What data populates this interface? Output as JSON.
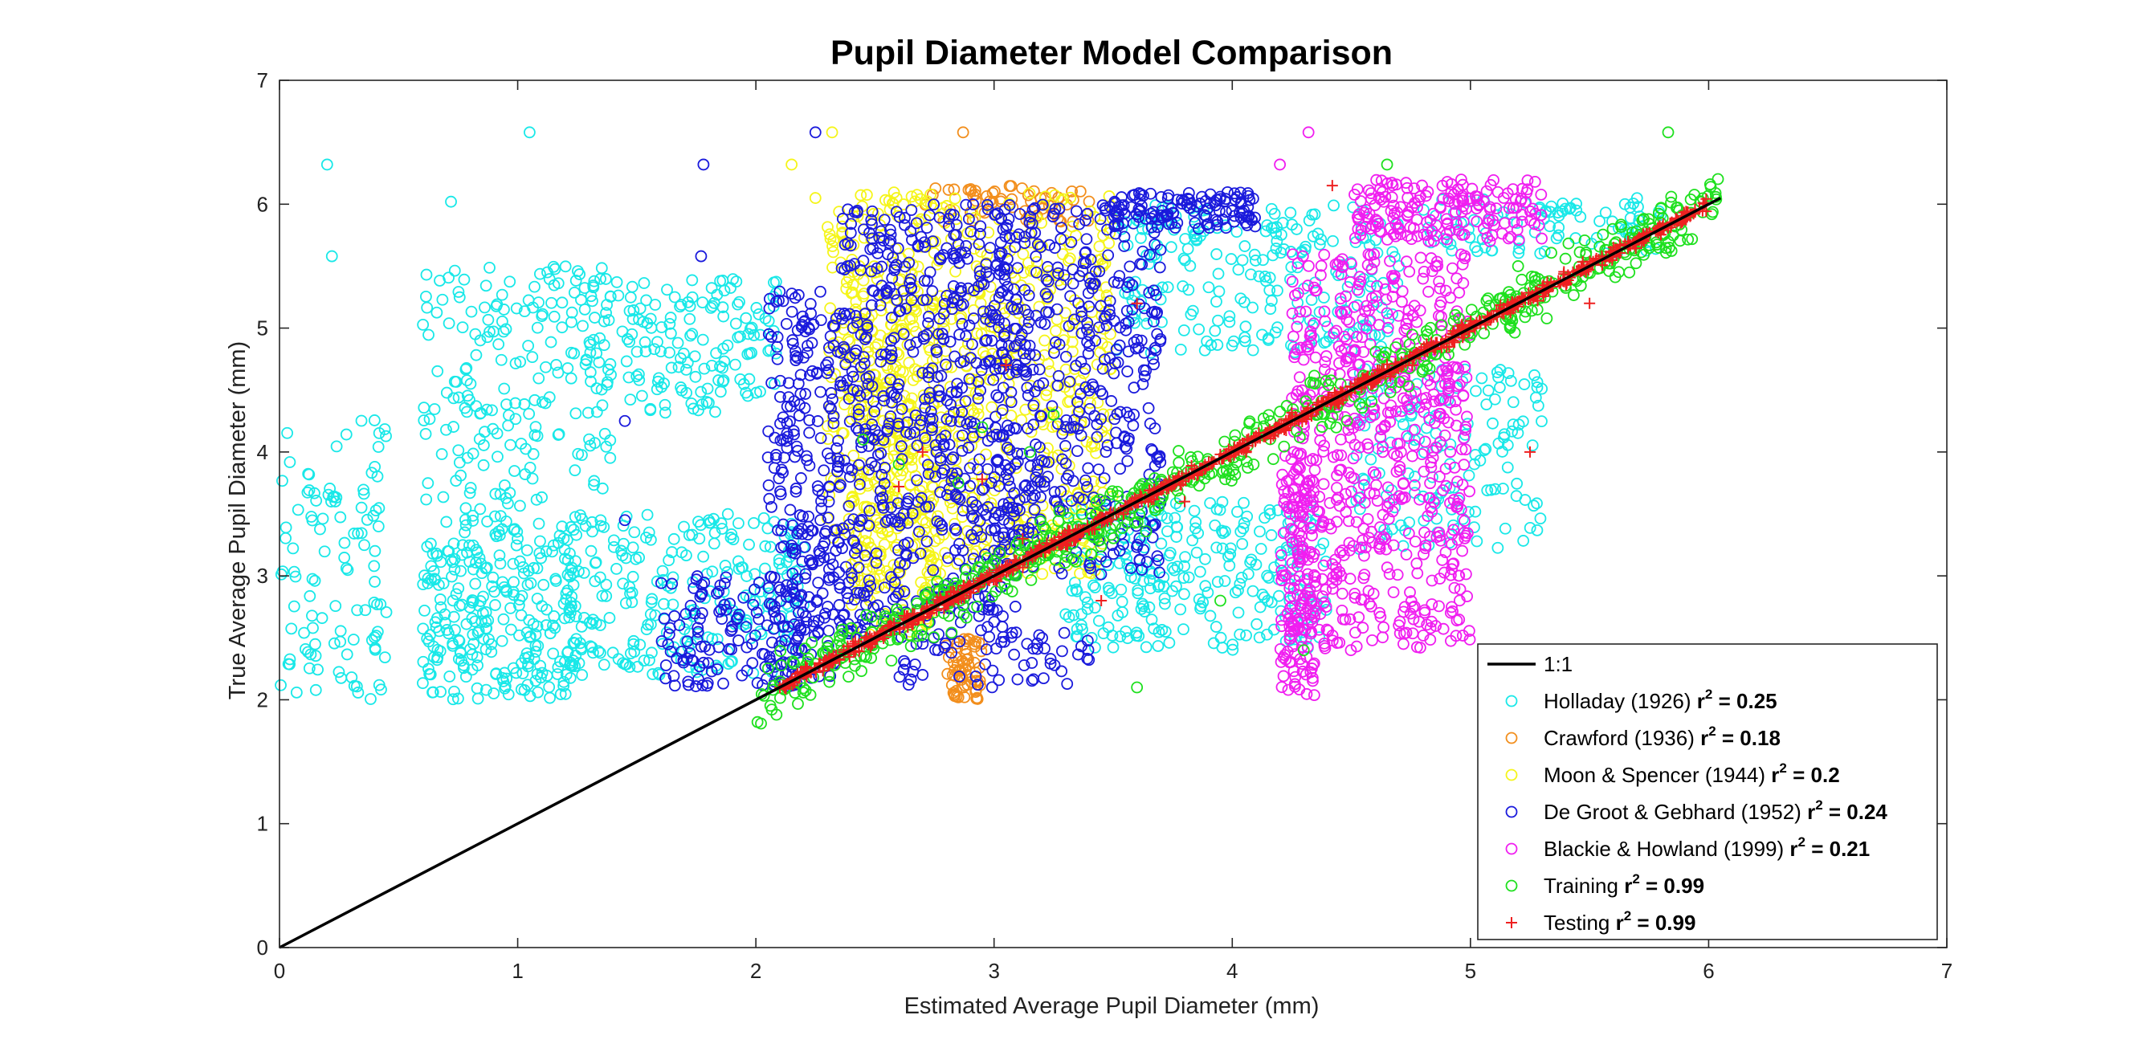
{
  "chart_data": {
    "type": "scatter",
    "title": "Pupil Diameter Model Comparison",
    "xlabel": "Estimated Average Pupil Diameter (mm)",
    "ylabel": "True Average Pupil Diameter (mm)",
    "xlim": [
      0,
      7
    ],
    "ylim": [
      0,
      7
    ],
    "xticks": [
      "0",
      "1",
      "2",
      "3",
      "4",
      "5",
      "6",
      "7"
    ],
    "yticks": [
      "0",
      "1",
      "2",
      "3",
      "4",
      "5",
      "6",
      "7"
    ],
    "grid": false,
    "legend_position": "bottom-right",
    "reference_line": {
      "name": "1:1",
      "x": [
        0,
        6.05
      ],
      "y": [
        0,
        6.05
      ],
      "color": "#000000"
    },
    "series": [
      {
        "name": "Holladay (1926)",
        "r2_label": "r",
        "r2_value": "= 0.25",
        "marker": "circle",
        "color": "#19e8e8",
        "clusters": [
          {
            "x": [
              0.0,
              0.45
            ],
            "y": [
              2.0,
              4.3
            ],
            "n": 110
          },
          {
            "x": [
              0.6,
              1.25
            ],
            "y": [
              2.0,
              3.3
            ],
            "n": 260
          },
          {
            "x": [
              0.6,
              1.4
            ],
            "y": [
              3.3,
              5.5
            ],
            "n": 220
          },
          {
            "x": [
              1.2,
              2.2
            ],
            "y": [
              2.2,
              3.5
            ],
            "n": 240
          },
          {
            "x": [
              1.3,
              2.1
            ],
            "y": [
              4.3,
              5.4
            ],
            "n": 160
          },
          {
            "x": [
              3.3,
              4.4
            ],
            "y": [
              2.4,
              3.6
            ],
            "n": 260
          },
          {
            "x": [
              3.5,
              4.7
            ],
            "y": [
              4.8,
              6.0
            ],
            "n": 220
          },
          {
            "x": [
              4.5,
              5.3
            ],
            "y": [
              3.2,
              4.7
            ],
            "n": 150
          },
          {
            "x": [
              4.8,
              5.8
            ],
            "y": [
              5.6,
              6.05
            ],
            "n": 90
          }
        ],
        "points": [
          [
            0.2,
            6.32
          ],
          [
            1.05,
            6.58
          ],
          [
            0.72,
            6.02
          ],
          [
            0.22,
            5.58
          ],
          [
            1.85,
            5.38
          ],
          [
            0.4,
            3.88
          ]
        ]
      },
      {
        "name": "Crawford (1936)",
        "r2_label": "r",
        "r2_value": "= 0.18",
        "marker": "circle",
        "color": "#f28e1c",
        "clusters": [
          {
            "x": [
              2.8,
              2.95
            ],
            "y": [
              2.0,
              2.5
            ],
            "n": 60
          },
          {
            "x": [
              2.7,
              3.4
            ],
            "y": [
              5.85,
              6.15
            ],
            "n": 60
          }
        ],
        "points": [
          [
            2.87,
            6.58
          ],
          [
            2.85,
            2.02
          ]
        ]
      },
      {
        "name": "Moon & Spencer (1944)",
        "r2_label": "r",
        "r2_value": "= 0.2",
        "marker": "circle",
        "color": "#f5f51a",
        "clusters": [
          {
            "x": [
              2.3,
              3.5
            ],
            "y": [
              3.0,
              6.1
            ],
            "n": 700
          },
          {
            "x": [
              2.4,
              2.75
            ],
            "y": [
              2.5,
              5.3
            ],
            "n": 240
          }
        ],
        "points": [
          [
            2.32,
            6.58
          ],
          [
            2.15,
            6.32
          ],
          [
            2.25,
            6.05
          ]
        ]
      },
      {
        "name": "De Groot & Gebhard (1952)",
        "r2_label": "r",
        "r2_value": "= 0.24",
        "marker": "circle",
        "color": "#1a1adc",
        "clusters": [
          {
            "x": [
              1.6,
              2.2
            ],
            "y": [
              2.1,
              3.0
            ],
            "n": 130
          },
          {
            "x": [
              2.05,
              2.35
            ],
            "y": [
              2.1,
              5.3
            ],
            "n": 260
          },
          {
            "x": [
              2.35,
              3.1
            ],
            "y": [
              2.5,
              6.0
            ],
            "n": 650
          },
          {
            "x": [
              3.0,
              3.7
            ],
            "y": [
              3.0,
              6.0
            ],
            "n": 450
          },
          {
            "x": [
              3.5,
              4.1
            ],
            "y": [
              5.8,
              6.1
            ],
            "n": 120
          },
          {
            "x": [
              2.6,
              3.4
            ],
            "y": [
              2.1,
              2.6
            ],
            "n": 60
          }
        ],
        "points": [
          [
            2.25,
            6.58
          ],
          [
            1.78,
            6.32
          ],
          [
            1.77,
            5.58
          ],
          [
            1.45,
            4.25
          ],
          [
            1.45,
            3.45
          ]
        ]
      },
      {
        "name": "Blackie & Howland (1999)",
        "r2_label": "r",
        "r2_value": "= 0.21",
        "marker": "circle",
        "color": "#f01ef0",
        "clusters": [
          {
            "x": [
              4.2,
              4.35
            ],
            "y": [
              2.0,
              4.0
            ],
            "n": 150
          },
          {
            "x": [
              4.25,
              5.0
            ],
            "y": [
              2.4,
              5.6
            ],
            "n": 620
          },
          {
            "x": [
              4.5,
              5.3
            ],
            "y": [
              5.7,
              6.2
            ],
            "n": 180
          }
        ],
        "points": [
          [
            4.32,
            6.58
          ],
          [
            4.2,
            6.32
          ]
        ]
      },
      {
        "name": "Training",
        "r2_label": "r",
        "r2_value": "= 0.99",
        "marker": "circle",
        "color": "#1ee01e",
        "band": {
          "x": [
            2.0,
            6.05
          ],
          "spread": 0.22,
          "n": 650
        },
        "points": [
          [
            5.83,
            6.58
          ],
          [
            4.65,
            6.32
          ],
          [
            2.45,
            4.1
          ],
          [
            2.95,
            4.2
          ],
          [
            3.25,
            4.3
          ],
          [
            2.85,
            3.75
          ],
          [
            3.15,
            4.0
          ],
          [
            2.6,
            3.9
          ],
          [
            3.6,
            2.1
          ],
          [
            3.95,
            2.8
          ],
          [
            5.2,
            5.5
          ],
          [
            4.3,
            2.4
          ]
        ]
      },
      {
        "name": "Testing",
        "r2_label": "r",
        "r2_value": "= 0.99",
        "marker": "plus",
        "color": "#ee2020",
        "band": {
          "x": [
            2.1,
            6.0
          ],
          "spread": 0.05,
          "n": 900
        },
        "points": [
          [
            4.42,
            6.15
          ],
          [
            3.05,
            4.7
          ],
          [
            3.6,
            5.2
          ],
          [
            2.6,
            3.72
          ],
          [
            2.95,
            3.78
          ],
          [
            3.12,
            3.3
          ],
          [
            3.45,
            2.8
          ],
          [
            3.8,
            3.6
          ],
          [
            4.6,
            4.6
          ],
          [
            5.5,
            5.2
          ],
          [
            5.25,
            4.0
          ],
          [
            2.7,
            4.0
          ]
        ]
      }
    ]
  }
}
